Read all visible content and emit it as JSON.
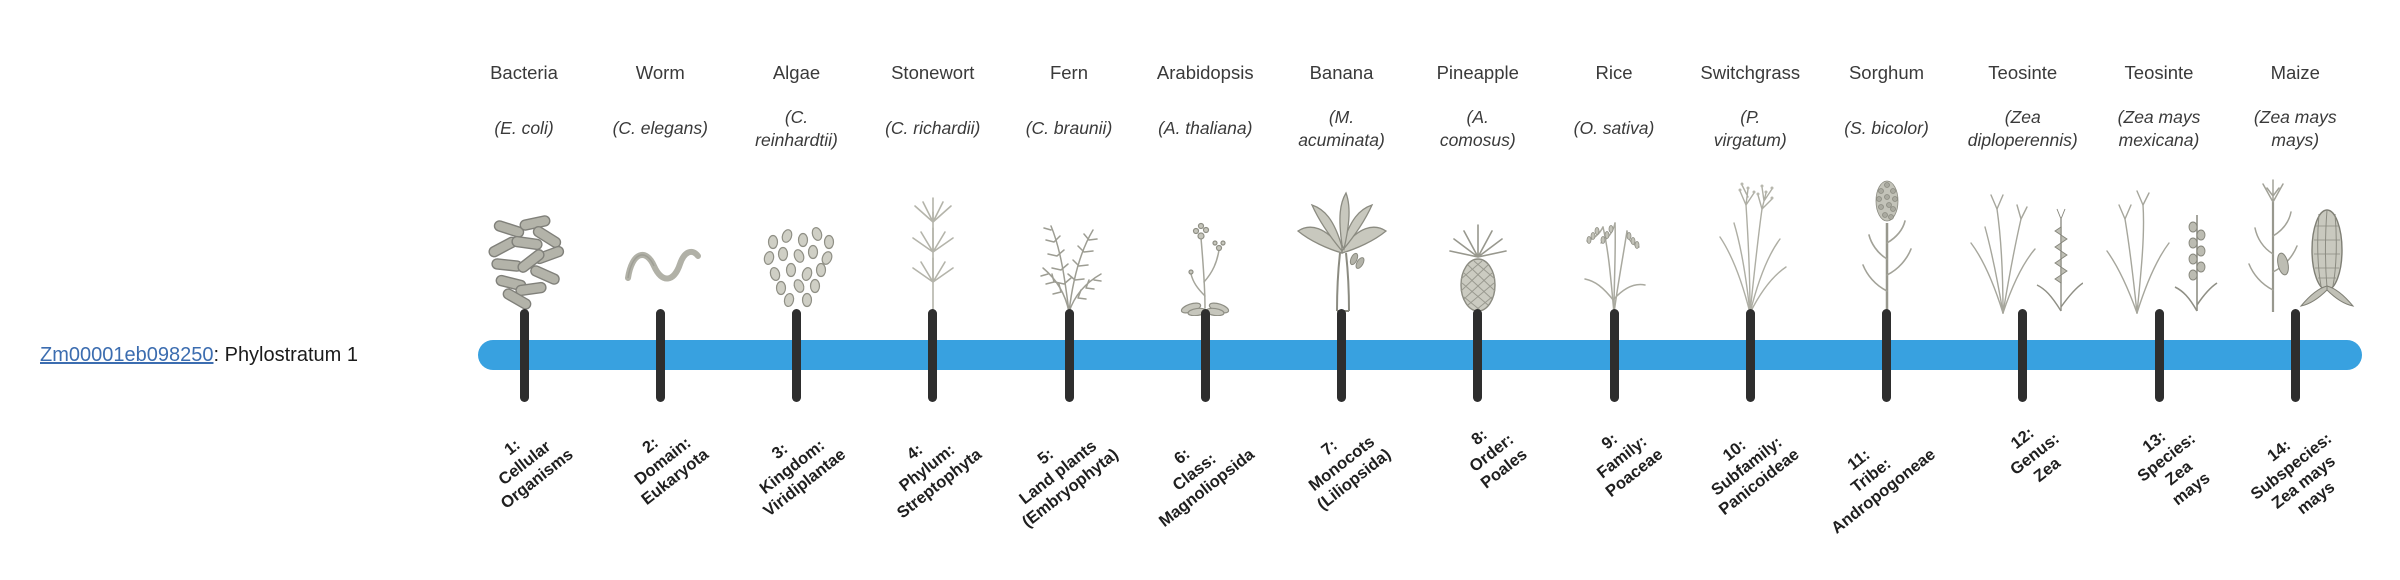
{
  "gene_label": {
    "link_text": "Zm00001eb098250",
    "rest_text": ": Phylostratum 1",
    "link_color": "#3c6db0"
  },
  "timeline": {
    "bar_color": "#38a1e0",
    "tick_color": "#2e2e2e"
  },
  "organisms": [
    {
      "common_name": "Bacteria",
      "scientific_name_lines": [
        "(E. coli)"
      ],
      "icon": "bacteria-icon",
      "stratum_lines": [
        "1:",
        "Cellular",
        "Organisms"
      ]
    },
    {
      "common_name": "Worm",
      "scientific_name_lines": [
        "(C. elegans)"
      ],
      "icon": "worm-icon",
      "stratum_lines": [
        "2:",
        "Domain:",
        "Eukaryota"
      ]
    },
    {
      "common_name": "Algae",
      "scientific_name_lines": [
        "(C.",
        "reinhardtii)"
      ],
      "icon": "algae-icon",
      "stratum_lines": [
        "3:",
        "Kingdom:",
        "Viridiplantae"
      ]
    },
    {
      "common_name": "Stonewort",
      "scientific_name_lines": [
        "(C. richardii)"
      ],
      "icon": "stonewort-icon",
      "stratum_lines": [
        "4:",
        "Phylum:",
        "Streptophyta"
      ]
    },
    {
      "common_name": "Fern",
      "scientific_name_lines": [
        "(C. braunii)"
      ],
      "icon": "fern-icon",
      "stratum_lines": [
        "5:",
        "Land plants",
        "(Embryophyta)"
      ]
    },
    {
      "common_name": "Arabidopsis",
      "scientific_name_lines": [
        "(A. thaliana)"
      ],
      "icon": "arabidopsis-icon",
      "stratum_lines": [
        "6:",
        "Class:",
        "Magnoliopsida"
      ]
    },
    {
      "common_name": "Banana",
      "scientific_name_lines": [
        "(M.",
        "acuminata)"
      ],
      "icon": "banana-plant-icon",
      "stratum_lines": [
        "7:",
        "Monocots",
        "(Liliopsida)"
      ]
    },
    {
      "common_name": "Pineapple",
      "scientific_name_lines": [
        "(A.",
        "comosus)"
      ],
      "icon": "pineapple-icon",
      "stratum_lines": [
        "8:",
        "Order:",
        "Poales"
      ]
    },
    {
      "common_name": "Rice",
      "scientific_name_lines": [
        "(O. sativa)"
      ],
      "icon": "rice-icon",
      "stratum_lines": [
        "9:",
        "Family:",
        "Poaceae"
      ]
    },
    {
      "common_name": "Switchgrass",
      "scientific_name_lines": [
        "(P.",
        "virgatum)"
      ],
      "icon": "switchgrass-icon",
      "stratum_lines": [
        "10:",
        "Subfamily:",
        "Panicoideae"
      ]
    },
    {
      "common_name": "Sorghum",
      "scientific_name_lines": [
        "(S. bicolor)"
      ],
      "icon": "sorghum-icon",
      "stratum_lines": [
        "11:",
        "Tribe:",
        "Andropogoneae"
      ]
    },
    {
      "common_name": "Teosinte",
      "scientific_name_lines": [
        "(Zea",
        "diploperennis)"
      ],
      "icon": "teosinte-diploperennis-icon",
      "stratum_lines": [
        "12:",
        "Genus:",
        "Zea"
      ]
    },
    {
      "common_name": "Teosinte",
      "scientific_name_lines": [
        "(Zea mays",
        "mexicana)"
      ],
      "icon": "teosinte-mexicana-icon",
      "stratum_lines": [
        "13:",
        "Species:",
        "Zea",
        "mays"
      ]
    },
    {
      "common_name": "Maize",
      "scientific_name_lines": [
        "(Zea mays",
        "mays)"
      ],
      "icon": "maize-icon",
      "stratum_lines": [
        "14:",
        "Subspecies:",
        "Zea mays",
        "mays"
      ]
    }
  ]
}
